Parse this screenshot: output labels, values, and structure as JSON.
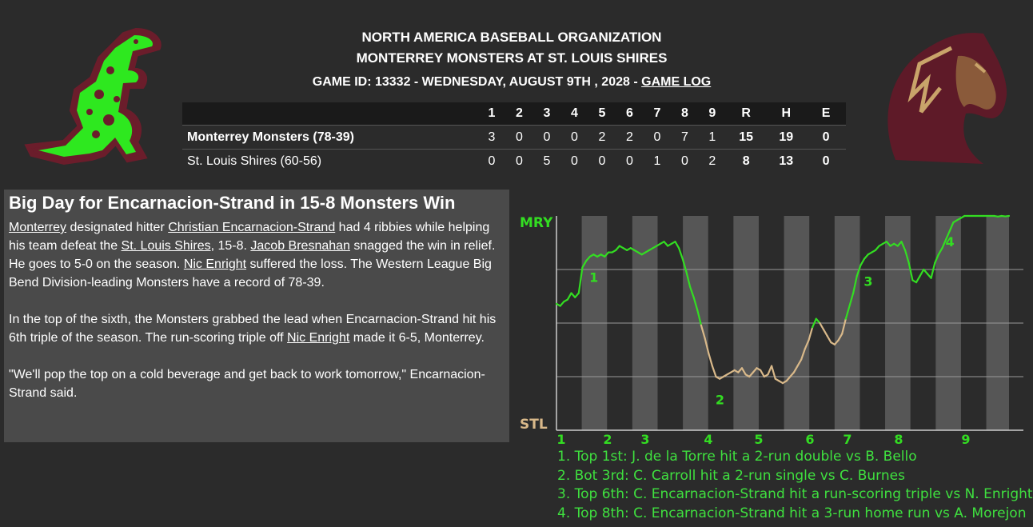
{
  "header": {
    "organization": "NORTH AMERICA BASEBALL ORGANIZATION",
    "matchup": "MONTERREY MONSTERS AT ST. LOUIS SHIRES",
    "game_info": "GAME ID: 13332 - WEDNESDAY, AUGUST 9TH , 2028 - ",
    "game_log_link": "GAME LOG"
  },
  "logos": {
    "away_icon": "monster-logo",
    "home_icon": "horse-logo"
  },
  "linescore": {
    "columns": [
      "1",
      "2",
      "3",
      "4",
      "5",
      "6",
      "7",
      "8",
      "9",
      "R",
      "H",
      "E"
    ],
    "away": {
      "team": "Monterrey Monsters (78-39)",
      "innings": [
        "3",
        "0",
        "0",
        "0",
        "2",
        "2",
        "0",
        "7",
        "1"
      ],
      "r": "15",
      "h": "19",
      "e": "0"
    },
    "home": {
      "team": "St. Louis Shires (60-56)",
      "innings": [
        "0",
        "0",
        "5",
        "0",
        "0",
        "0",
        "1",
        "0",
        "2"
      ],
      "r": "8",
      "h": "13",
      "e": "0"
    }
  },
  "story": {
    "headline": "Big Day for Encarnacion-Strand in 15-8 Monsters Win",
    "p1": {
      "t0": "Monterrey",
      "t1": " designated hitter ",
      "t2": "Christian Encarnacion-Strand",
      "t3": " had 4 ribbies while helping his team defeat the ",
      "t4": "St. Louis Shires",
      "t5": ", 15-8. ",
      "t6": "Jacob Bresnahan",
      "t7": " snagged the win in relief. He goes to 5-0 on the season. ",
      "t8": "Nic Enright",
      "t9": " suffered the loss. The Western League Big Bend Division-leading Monsters have a record of 78-39."
    },
    "p2": {
      "t0": "In the top of the sixth, the Monsters grabbed the lead when Encarnacion-Strand hit his 6th triple of the season. The run-scoring triple off ",
      "t1": "Nic Enright",
      "t2": " made it 6-5, Monterrey."
    },
    "p3": "\"We'll pop the top on a cold beverage and get back to work tomorrow,\" Encarnacion-Strand said."
  },
  "chart_data": {
    "type": "line",
    "title": "",
    "ylabel_top": "MRY",
    "ylabel_bottom": "STL",
    "ylim": [
      0,
      1
    ],
    "x_tick_labels": [
      "1",
      "2",
      "3",
      "4",
      "5",
      "6",
      "7",
      "8",
      "9"
    ],
    "colors": {
      "away": "#33dd22",
      "home": "#d9b98a",
      "shade": "#7a7a7a",
      "grid": "#999999"
    },
    "series": [
      {
        "values": [
          0.59,
          0.58,
          0.6,
          0.61,
          0.64,
          0.62,
          0.64,
          0.76,
          0.79,
          0.81,
          0.82,
          0.81,
          0.82,
          0.81,
          0.83,
          0.83,
          0.84,
          0.86,
          0.85,
          0.84,
          0.85,
          0.84,
          0.83,
          0.82,
          0.83,
          0.84,
          0.85,
          0.86,
          0.87,
          0.88,
          0.86,
          0.87,
          0.88,
          0.85,
          0.8,
          0.74,
          0.67,
          0.62,
          0.56,
          0.49,
          0.43,
          0.36,
          0.3,
          0.25,
          0.24,
          0.25,
          0.26,
          0.27,
          0.28,
          0.27,
          0.29,
          0.26,
          0.25,
          0.27,
          0.29,
          0.28,
          0.25,
          0.26,
          0.3,
          0.24,
          0.23,
          0.22,
          0.23,
          0.25,
          0.27,
          0.3,
          0.33,
          0.38,
          0.42,
          0.48,
          0.52,
          0.5,
          0.47,
          0.44,
          0.41,
          0.4,
          0.42,
          0.45,
          0.52,
          0.58,
          0.64,
          0.72,
          0.77,
          0.8,
          0.82,
          0.83,
          0.84,
          0.86,
          0.87,
          0.88,
          0.86,
          0.87,
          0.86,
          0.88,
          0.84,
          0.78,
          0.7,
          0.69,
          0.72,
          0.75,
          0.73,
          0.71,
          0.78,
          0.82,
          0.85,
          0.89,
          0.93,
          0.97,
          0.98,
          0.99,
          1.0,
          1.0,
          1.0,
          1.0,
          1.0,
          1.0,
          1.0,
          1.0,
          1.0,
          0.997,
          1.0,
          0.998,
          1.0
        ]
      }
    ],
    "markers": [
      {
        "label": "1",
        "index": 8
      },
      {
        "label": "2",
        "index": 42
      },
      {
        "label": "3",
        "index": 82
      },
      {
        "label": "4",
        "index": 104
      }
    ]
  },
  "key": {
    "k1": "1. Top 1st: J. de la Torre hit a 2-run double vs B. Bello",
    "k2": "2. Bot 3rd: C. Carroll hit a 2-run single vs C. Burnes",
    "k3": "3. Top 6th: C. Encarnacion-Strand hit a run-scoring triple vs N. Enright",
    "k4": "4. Top 8th: C. Encarnacion-Strand hit a 3-run home run vs A. Morejon"
  }
}
